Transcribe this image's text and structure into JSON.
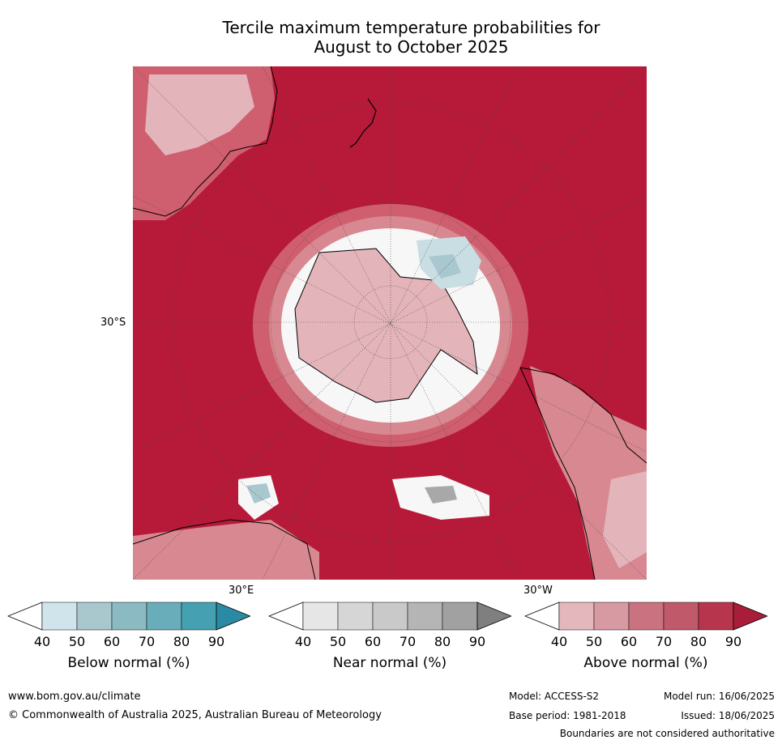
{
  "title_line1": "Tercile maximum temperature probabilities for",
  "title_line2": "August to October 2025",
  "map": {
    "lat_label": "30°S",
    "lon_label_east": "30°E",
    "lon_label_west": "30°W",
    "colors": {
      "above_90": "#b61a38",
      "above_80": "#c33650",
      "above_70": "#cf5f6f",
      "above_60": "#d88891",
      "above_50": "#e3b5ba",
      "below_50": "#c9dee3",
      "below_60": "#a8c7cf",
      "near_80": "#a8a8a8",
      "white": "#f7f7f7"
    }
  },
  "legends": [
    {
      "title": "Below normal (%)",
      "ticks": [
        "40",
        "50",
        "60",
        "70",
        "80",
        "90"
      ],
      "colors": [
        "#ffffff",
        "#cfe5eb",
        "#a8c8ce",
        "#8bbac2",
        "#69adbb",
        "#45a0b2",
        "#2b8aa3"
      ]
    },
    {
      "title": "Near normal (%)",
      "ticks": [
        "40",
        "50",
        "60",
        "70",
        "80",
        "90"
      ],
      "colors": [
        "#ffffff",
        "#e6e6e6",
        "#d6d6d6",
        "#c9c9c9",
        "#b5b5b5",
        "#a1a1a1",
        "#7f7f7f"
      ]
    },
    {
      "title": "Above normal (%)",
      "ticks": [
        "40",
        "50",
        "60",
        "70",
        "80",
        "90"
      ],
      "colors": [
        "#ffffff",
        "#e3b7bc",
        "#d89aa2",
        "#cb7280",
        "#c05a6b",
        "#b8364d",
        "#a71d3a"
      ]
    }
  ],
  "footer": {
    "url": "www.bom.gov.au/climate",
    "copyright": "© Commonwealth of Australia 2025, Australian Bureau of Meteorology",
    "model": "Model: ACCESS-S2",
    "base_period": "Base period: 1981-2018",
    "model_run": "Model run: 16/06/2025",
    "issued": "Issued: 18/06/2025",
    "disclaimer": "Boundaries are not considered authoritative"
  }
}
